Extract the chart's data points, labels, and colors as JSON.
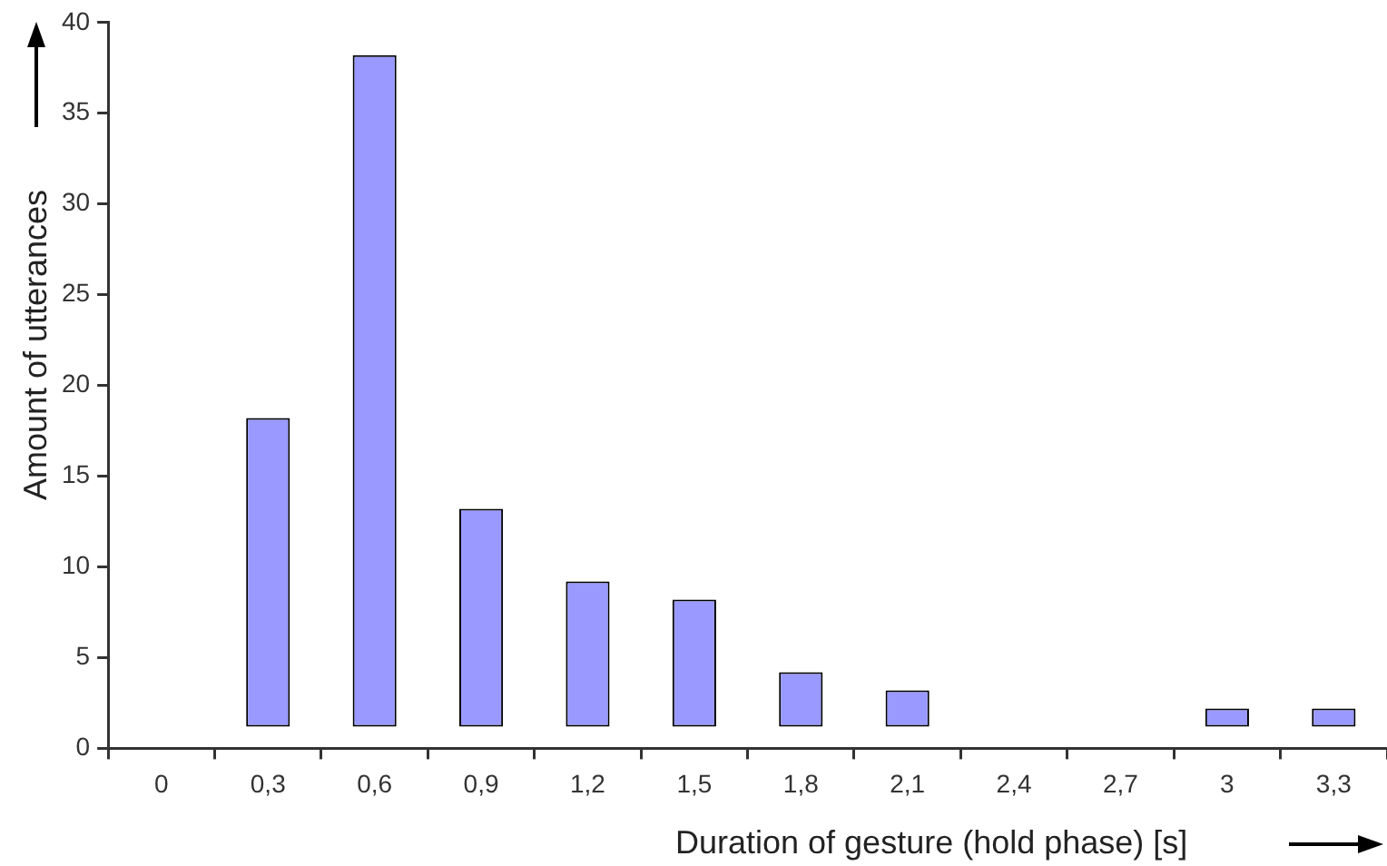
{
  "chart_data": {
    "type": "bar",
    "xlabel": "Duration of gesture (hold phase) [s]",
    "ylabel": "Amount of utterances",
    "categories": [
      "0",
      "0,3",
      "0,6",
      "0,9",
      "1,2",
      "1,5",
      "1,8",
      "2,1",
      "2,4",
      "2,7",
      "3",
      "3,3"
    ],
    "values": [
      null,
      17,
      37,
      12,
      8,
      7,
      3,
      2,
      null,
      null,
      1,
      1
    ],
    "base": [
      null,
      1.2,
      1.2,
      1.2,
      1.2,
      1.2,
      1.2,
      1.2,
      null,
      null,
      1.2,
      1.2
    ],
    "color": "#9999ff",
    "ylim": [
      0,
      40
    ],
    "yticks": [
      0,
      5,
      10,
      15,
      20,
      25,
      30,
      35,
      40
    ],
    "grid": false,
    "legend": false
  }
}
